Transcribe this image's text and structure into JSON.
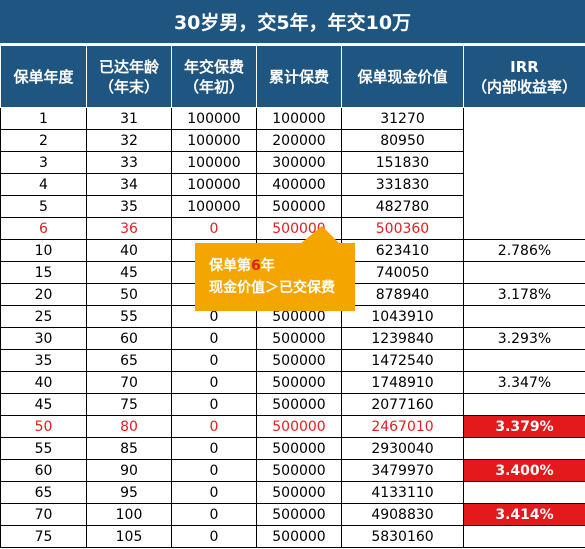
{
  "title": "30岁男，交5年，年交10万",
  "headers": {
    "policy_year": "保单年度",
    "age_line1": "已达年龄",
    "age_line2": "（年末）",
    "premium_line1": "年交保费",
    "premium_line2": "（年初）",
    "cumulative": "累计保费",
    "cash_value": "保单现金价值",
    "irr_line1": "IRR",
    "irr_line2": "（内部收益率）"
  },
  "rows": [
    {
      "year": "1",
      "age": "31",
      "premium": "100000",
      "cumulative": "100000",
      "cash_value": "31270",
      "irr": ""
    },
    {
      "year": "2",
      "age": "32",
      "premium": "100000",
      "cumulative": "200000",
      "cash_value": "80950",
      "irr": ""
    },
    {
      "year": "3",
      "age": "33",
      "premium": "100000",
      "cumulative": "300000",
      "cash_value": "151830",
      "irr": ""
    },
    {
      "year": "4",
      "age": "34",
      "premium": "100000",
      "cumulative": "400000",
      "cash_value": "331830",
      "irr": ""
    },
    {
      "year": "5",
      "age": "35",
      "premium": "100000",
      "cumulative": "500000",
      "cash_value": "482780",
      "irr": ""
    },
    {
      "year": "6",
      "age": "36",
      "premium": "0",
      "cumulative": "500000",
      "cash_value": "500360",
      "irr": ""
    },
    {
      "year": "10",
      "age": "40",
      "premium": "",
      "cumulative": "",
      "cash_value": "623410",
      "irr": "2.786%"
    },
    {
      "year": "15",
      "age": "45",
      "premium": "",
      "cumulative": "",
      "cash_value": "740050",
      "irr": ""
    },
    {
      "year": "20",
      "age": "50",
      "premium": "",
      "cumulative": "",
      "cash_value": "878940",
      "irr": "3.178%"
    },
    {
      "year": "25",
      "age": "55",
      "premium": "0",
      "cumulative": "500000",
      "cash_value": "1043910",
      "irr": ""
    },
    {
      "year": "30",
      "age": "60",
      "premium": "0",
      "cumulative": "500000",
      "cash_value": "1239840",
      "irr": "3.293%"
    },
    {
      "year": "35",
      "age": "65",
      "premium": "0",
      "cumulative": "500000",
      "cash_value": "1472540",
      "irr": ""
    },
    {
      "year": "40",
      "age": "70",
      "premium": "0",
      "cumulative": "500000",
      "cash_value": "1748910",
      "irr": "3.347%"
    },
    {
      "year": "45",
      "age": "75",
      "premium": "0",
      "cumulative": "500000",
      "cash_value": "2077160",
      "irr": ""
    },
    {
      "year": "50",
      "age": "80",
      "premium": "0",
      "cumulative": "500000",
      "cash_value": "2467010",
      "irr": "3.379%"
    },
    {
      "year": "55",
      "age": "85",
      "premium": "0",
      "cumulative": "500000",
      "cash_value": "2930040",
      "irr": ""
    },
    {
      "year": "60",
      "age": "90",
      "premium": "0",
      "cumulative": "500000",
      "cash_value": "3479970",
      "irr": "3.400%"
    },
    {
      "year": "65",
      "age": "95",
      "premium": "0",
      "cumulative": "500000",
      "cash_value": "4133110",
      "irr": ""
    },
    {
      "year": "70",
      "age": "100",
      "premium": "0",
      "cumulative": "500000",
      "cash_value": "4908830",
      "irr": "3.414%"
    },
    {
      "year": "75",
      "age": "105",
      "premium": "0",
      "cumulative": "500000",
      "cash_value": "5830160",
      "irr": ""
    }
  ],
  "red_rows": [
    "6",
    "50"
  ],
  "irr_highlight_rows": [
    "50",
    "60",
    "70"
  ],
  "callout": {
    "prefix": "保单第",
    "highlight": "6",
    "suffix": "年",
    "line2": "现金价值＞已交保费"
  },
  "colors": {
    "header_bg": "#1f5581",
    "callout_bg": "#f5a500",
    "highlight_red": "#e4191c",
    "text_red": "#e02020"
  }
}
